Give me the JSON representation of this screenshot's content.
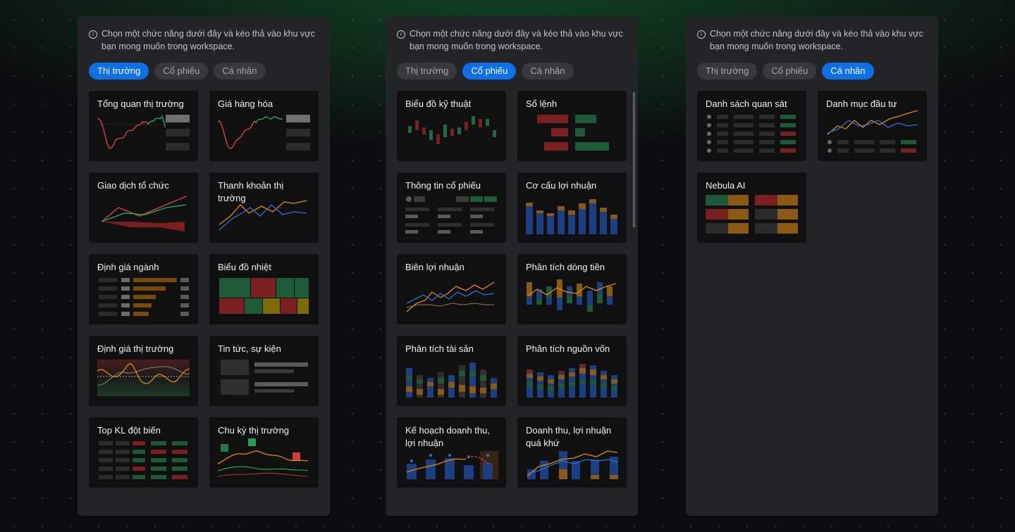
{
  "info_text": "Chọn một chức năng dưới đây và kéo thả vào khu vực bạn mong muốn trong workspace.",
  "tabs": [
    "Thị trường",
    "Cổ phiếu",
    "Cá nhân"
  ],
  "colors": {
    "accent": "#0f6fe6",
    "up": "#22c55e",
    "down": "#ef4444",
    "blue": "#2f6fd8",
    "orange": "#e28b0c"
  },
  "panels": [
    {
      "active_tab": "Thị trường",
      "cards": [
        "Tổng quan thị trường",
        "Giá hàng hóa",
        "Giao dịch tổ chức",
        "Thanh khoản thị trường",
        "Định giá ngành",
        "Biểu đồ nhiệt",
        "Định giá thị trường",
        "Tin tức, sự kiện",
        "Top KL đột biến",
        "Chu kỳ thị trường"
      ]
    },
    {
      "active_tab": "Cổ phiếu",
      "cards": [
        "Biểu đồ kỹ thuật",
        "Sổ lệnh",
        "Thông tin cổ phiếu",
        "Cơ cấu lợi nhuận",
        "Biên lợi nhuận",
        "Phân tích dòng tiền",
        "Phân tích tài sản",
        "Phân tích nguồn vốn",
        "Kế hoạch doanh thu, lợi nhuận",
        "Doanh thu, lợi nhuận quá khứ"
      ]
    },
    {
      "active_tab": "Cá nhân",
      "cards": [
        "Danh sách quan sát",
        "Danh mục đầu tư",
        "Nebula AI"
      ]
    }
  ]
}
